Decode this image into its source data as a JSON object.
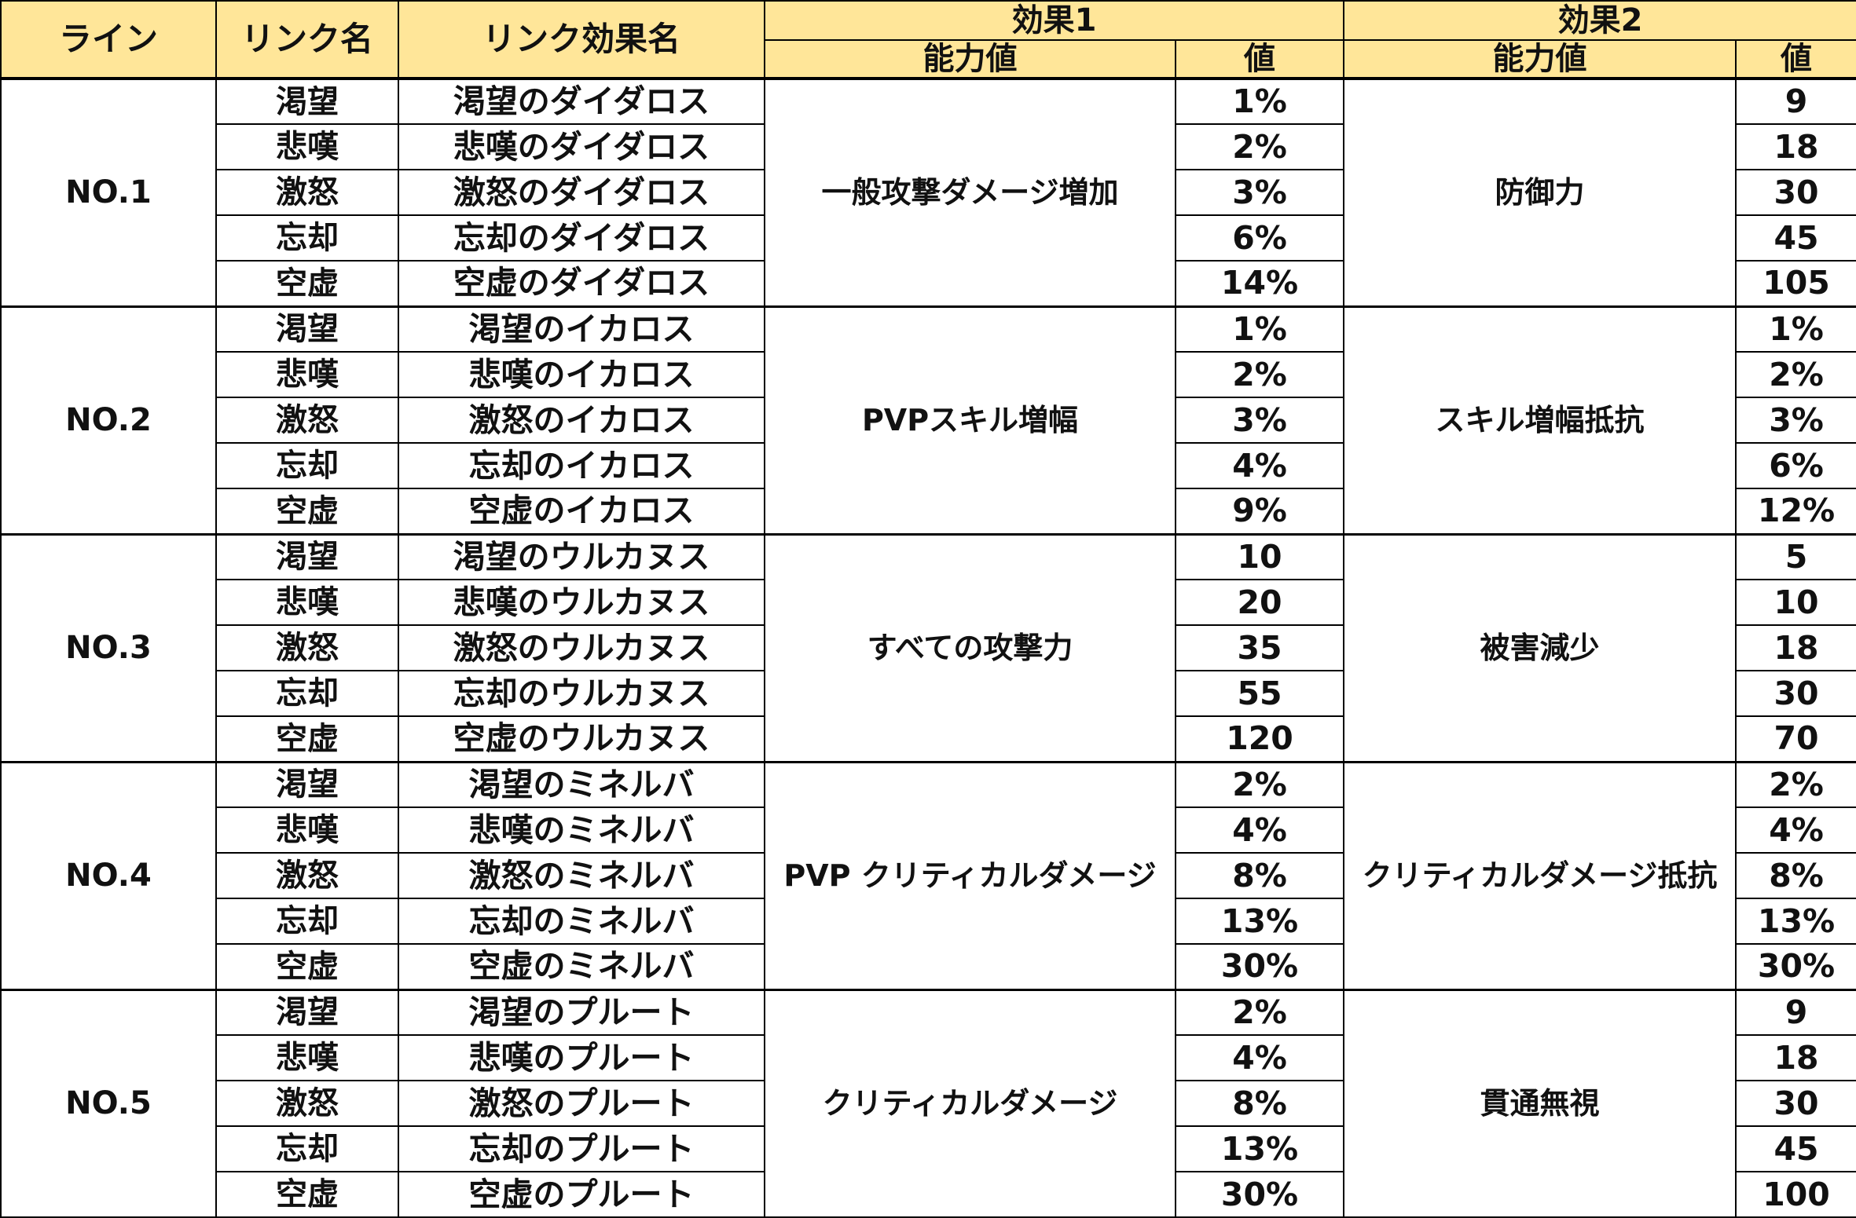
{
  "colors": {
    "header_bg": "#FFE699",
    "border": "#000000",
    "text": "#111111"
  },
  "header": {
    "line": "ライン",
    "link_name": "リンク名",
    "link_effect_name": "リンク効果名",
    "effect1": "効果1",
    "effect2": "効果2",
    "ability": "能力値",
    "value": "値"
  },
  "groups": [
    {
      "line": "NO.1",
      "effect1_name": "一般攻撃ダメージ増加",
      "effect2_name": "防御力",
      "rows": [
        {
          "link": "渇望",
          "effect": "渇望のダイダロス",
          "v1": "1%",
          "v2": "9"
        },
        {
          "link": "悲嘆",
          "effect": "悲嘆のダイダロス",
          "v1": "2%",
          "v2": "18"
        },
        {
          "link": "激怒",
          "effect": "激怒のダイダロス",
          "v1": "3%",
          "v2": "30"
        },
        {
          "link": "忘却",
          "effect": "忘却のダイダロス",
          "v1": "6%",
          "v2": "45"
        },
        {
          "link": "空虚",
          "effect": "空虚のダイダロス",
          "v1": "14%",
          "v2": "105"
        }
      ]
    },
    {
      "line": "NO.2",
      "effect1_name": "PVPスキル増幅",
      "effect2_name": "スキル増幅抵抗",
      "rows": [
        {
          "link": "渇望",
          "effect": "渇望のイカロス",
          "v1": "1%",
          "v2": "1%"
        },
        {
          "link": "悲嘆",
          "effect": "悲嘆のイカロス",
          "v1": "2%",
          "v2": "2%"
        },
        {
          "link": "激怒",
          "effect": "激怒のイカロス",
          "v1": "3%",
          "v2": "3%"
        },
        {
          "link": "忘却",
          "effect": "忘却のイカロス",
          "v1": "4%",
          "v2": "6%"
        },
        {
          "link": "空虚",
          "effect": "空虚のイカロス",
          "v1": "9%",
          "v2": "12%"
        }
      ]
    },
    {
      "line": "NO.3",
      "effect1_name": "すべての攻撃力",
      "effect2_name": "被害減少",
      "rows": [
        {
          "link": "渇望",
          "effect": "渇望のウルカヌス",
          "v1": "10",
          "v2": "5"
        },
        {
          "link": "悲嘆",
          "effect": "悲嘆のウルカヌス",
          "v1": "20",
          "v2": "10"
        },
        {
          "link": "激怒",
          "effect": "激怒のウルカヌス",
          "v1": "35",
          "v2": "18"
        },
        {
          "link": "忘却",
          "effect": "忘却のウルカヌス",
          "v1": "55",
          "v2": "30"
        },
        {
          "link": "空虚",
          "effect": "空虚のウルカヌス",
          "v1": "120",
          "v2": "70"
        }
      ]
    },
    {
      "line": "NO.4",
      "effect1_name": "PVP クリティカルダメージ",
      "effect2_name": "クリティカルダメージ抵抗",
      "rows": [
        {
          "link": "渇望",
          "effect": "渇望のミネルバ",
          "v1": "2%",
          "v2": "2%"
        },
        {
          "link": "悲嘆",
          "effect": "悲嘆のミネルバ",
          "v1": "4%",
          "v2": "4%"
        },
        {
          "link": "激怒",
          "effect": "激怒のミネルバ",
          "v1": "8%",
          "v2": "8%"
        },
        {
          "link": "忘却",
          "effect": "忘却のミネルバ",
          "v1": "13%",
          "v2": "13%"
        },
        {
          "link": "空虚",
          "effect": "空虚のミネルバ",
          "v1": "30%",
          "v2": "30%"
        }
      ]
    },
    {
      "line": "NO.5",
      "effect1_name": "クリティカルダメージ",
      "effect2_name": "貫通無視",
      "rows": [
        {
          "link": "渇望",
          "effect": "渇望のプルート",
          "v1": "2%",
          "v2": "9"
        },
        {
          "link": "悲嘆",
          "effect": "悲嘆のプルート",
          "v1": "4%",
          "v2": "18"
        },
        {
          "link": "激怒",
          "effect": "激怒のプルート",
          "v1": "8%",
          "v2": "30"
        },
        {
          "link": "忘却",
          "effect": "忘却のプルート",
          "v1": "13%",
          "v2": "45"
        },
        {
          "link": "空虚",
          "effect": "空虚のプルート",
          "v1": "30%",
          "v2": "100"
        }
      ]
    }
  ]
}
